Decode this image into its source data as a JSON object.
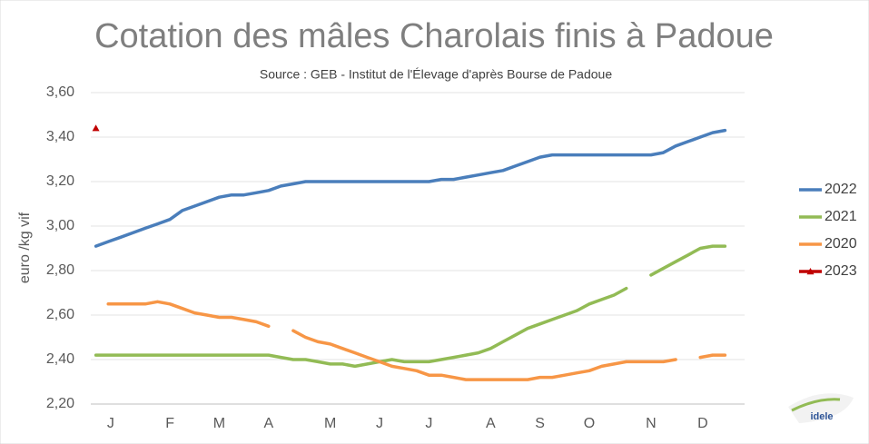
{
  "chart_data": {
    "type": "line",
    "title": "Cotation des mâles Charolais finis à Padoue",
    "subtitle": "Source : GEB - Institut de l'Élevage d'après Bourse de Padoue",
    "y_label": "euro /kg vif",
    "x": [
      1,
      2,
      3,
      4,
      5,
      6,
      7,
      8,
      9,
      10,
      11,
      12,
      13,
      14,
      15,
      16,
      17,
      18,
      19,
      20,
      21,
      22,
      23,
      24,
      25,
      26,
      27,
      28,
      29,
      30,
      31,
      32,
      33,
      34,
      35,
      36,
      37,
      38,
      39,
      40,
      41,
      42,
      43,
      44,
      45,
      46,
      47,
      48,
      49,
      50,
      51,
      52
    ],
    "xlim": [
      0,
      53
    ],
    "xticks": [
      {
        "value": 2.2,
        "label": "J"
      },
      {
        "value": 7,
        "label": "F"
      },
      {
        "value": 11,
        "label": "M"
      },
      {
        "value": 15,
        "label": "A"
      },
      {
        "value": 20,
        "label": "M"
      },
      {
        "value": 24,
        "label": "J"
      },
      {
        "value": 28,
        "label": "J"
      },
      {
        "value": 33,
        "label": "A"
      },
      {
        "value": 37,
        "label": "S"
      },
      {
        "value": 41,
        "label": "O"
      },
      {
        "value": 46,
        "label": "N"
      },
      {
        "value": 50.2,
        "label": "D"
      }
    ],
    "ylim": [
      2.2,
      3.6
    ],
    "yticks": [
      {
        "value": 2.2,
        "label": "2,20"
      },
      {
        "value": 2.4,
        "label": "2,40"
      },
      {
        "value": 2.6,
        "label": "2,60"
      },
      {
        "value": 2.8,
        "label": "2,80"
      },
      {
        "value": 3.0,
        "label": "3,00"
      },
      {
        "value": 3.2,
        "label": "3,20"
      },
      {
        "value": 3.4,
        "label": "3,40"
      },
      {
        "value": 3.6,
        "label": "3,60"
      }
    ],
    "grid": true,
    "legend": "right",
    "series": [
      {
        "name": "2022",
        "color": "#4a7ebb",
        "values": [
          2.91,
          2.93,
          2.95,
          2.97,
          2.99,
          3.01,
          3.03,
          3.07,
          3.09,
          3.11,
          3.13,
          3.14,
          3.14,
          3.15,
          3.16,
          3.18,
          3.19,
          3.2,
          3.2,
          3.2,
          3.2,
          3.2,
          3.2,
          3.2,
          3.2,
          3.2,
          3.2,
          3.2,
          3.21,
          3.21,
          3.22,
          3.23,
          3.24,
          3.25,
          3.27,
          3.29,
          3.31,
          3.32,
          3.32,
          3.32,
          3.32,
          3.32,
          3.32,
          3.32,
          3.32,
          3.32,
          3.33,
          3.36,
          3.38,
          3.4,
          3.42,
          3.43
        ]
      },
      {
        "name": "2021",
        "color": "#92bb55",
        "values": [
          2.42,
          2.42,
          2.42,
          2.42,
          2.42,
          2.42,
          2.42,
          2.42,
          2.42,
          2.42,
          2.42,
          2.42,
          2.42,
          2.42,
          2.42,
          2.41,
          2.4,
          2.4,
          2.39,
          2.38,
          2.38,
          2.37,
          2.38,
          2.39,
          2.4,
          2.39,
          2.39,
          2.39,
          2.4,
          2.41,
          2.42,
          2.43,
          2.45,
          2.48,
          2.51,
          2.54,
          2.56,
          2.58,
          2.6,
          2.62,
          2.65,
          2.67,
          2.69,
          2.72,
          null,
          2.78,
          2.81,
          2.84,
          2.87,
          2.9,
          2.91,
          2.91
        ]
      },
      {
        "name": "2020",
        "color": "#f79646",
        "values": [
          null,
          2.65,
          2.65,
          2.65,
          2.65,
          2.66,
          2.65,
          2.63,
          2.61,
          2.6,
          2.59,
          2.59,
          2.58,
          2.57,
          2.55,
          null,
          2.53,
          2.5,
          2.48,
          2.47,
          2.45,
          2.43,
          2.41,
          2.39,
          2.37,
          2.36,
          2.35,
          2.33,
          2.33,
          2.32,
          2.31,
          2.31,
          2.31,
          2.31,
          2.31,
          2.31,
          2.32,
          2.32,
          2.33,
          2.34,
          2.35,
          2.37,
          2.38,
          2.39,
          2.39,
          2.39,
          2.39,
          2.4,
          null,
          2.41,
          2.42,
          2.42
        ]
      },
      {
        "name": "2023",
        "color": "#c00000",
        "marker": "triangle",
        "values": [
          3.44,
          null,
          null,
          null,
          null,
          null,
          null,
          null,
          null,
          null,
          null,
          null,
          null,
          null,
          null,
          null,
          null,
          null,
          null,
          null,
          null,
          null,
          null,
          null,
          null,
          null,
          null,
          null,
          null,
          null,
          null,
          null,
          null,
          null,
          null,
          null,
          null,
          null,
          null,
          null,
          null,
          null,
          null,
          null,
          null,
          null,
          null,
          null,
          null,
          null,
          null,
          null
        ]
      }
    ],
    "logo_text": "idele"
  }
}
